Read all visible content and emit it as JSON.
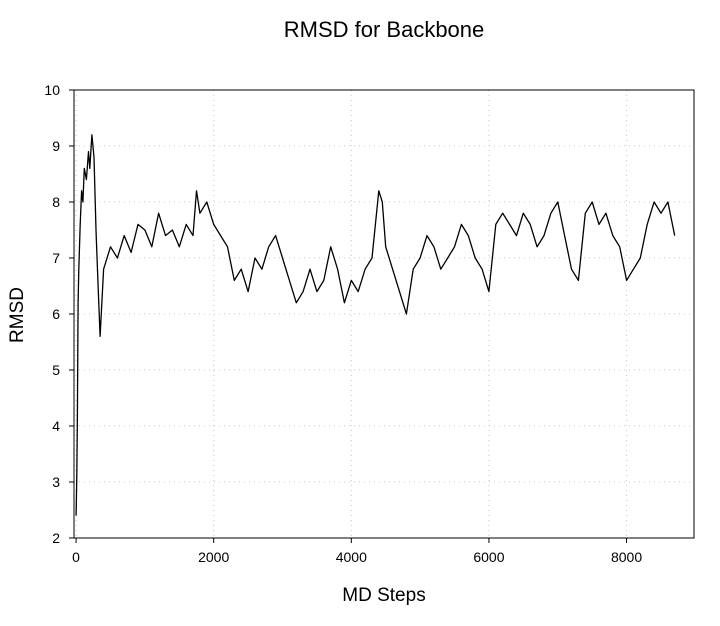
{
  "chart_data": {
    "type": "line",
    "title": "RMSD for Backbone",
    "xlabel": "MD Steps",
    "ylabel": "RMSD",
    "xlim": [
      -30,
      8980
    ],
    "ylim": [
      2,
      10
    ],
    "xticks": [
      0,
      2000,
      4000,
      6000,
      8000
    ],
    "xtick_labels": [
      "0",
      "2000",
      "4000",
      "6000",
      "8000"
    ],
    "yticks": [
      2,
      3,
      4,
      5,
      6,
      7,
      8,
      9,
      10
    ],
    "ytick_labels": [
      "2",
      "3",
      "4",
      "5",
      "6",
      "7",
      "8",
      "9",
      "10"
    ],
    "grid": true,
    "legend": "none",
    "series": [
      {
        "color": "#000000",
        "x": [
          0,
          10,
          20,
          30,
          40,
          60,
          80,
          100,
          120,
          150,
          180,
          200,
          230,
          260,
          290,
          320,
          350,
          400,
          500,
          600,
          700,
          800,
          900,
          1000,
          1100,
          1200,
          1300,
          1400,
          1500,
          1600,
          1700,
          1750,
          1800,
          1900,
          2000,
          2100,
          2200,
          2300,
          2400,
          2500,
          2600,
          2700,
          2800,
          2900,
          3000,
          3100,
          3200,
          3300,
          3400,
          3500,
          3600,
          3700,
          3800,
          3900,
          4000,
          4100,
          4200,
          4300,
          4400,
          4450,
          4500,
          4600,
          4700,
          4800,
          4900,
          5000,
          5100,
          5200,
          5300,
          5400,
          5500,
          5600,
          5700,
          5800,
          5900,
          6000,
          6100,
          6200,
          6300,
          6400,
          6500,
          6600,
          6700,
          6800,
          6900,
          7000,
          7100,
          7200,
          7300,
          7400,
          7500,
          7600,
          7700,
          7800,
          7900,
          8000,
          8100,
          8200,
          8300,
          8400,
          8500,
          8600,
          8700
        ],
        "y": [
          2.4,
          3.1,
          4.2,
          6.2,
          6.8,
          7.6,
          8.2,
          8.0,
          8.6,
          8.4,
          8.9,
          8.6,
          9.2,
          8.8,
          7.5,
          6.5,
          5.6,
          6.8,
          7.2,
          7.0,
          7.4,
          7.1,
          7.6,
          7.5,
          7.2,
          7.8,
          7.4,
          7.5,
          7.2,
          7.6,
          7.4,
          8.2,
          7.8,
          8.0,
          7.6,
          7.4,
          7.2,
          6.6,
          6.8,
          6.4,
          7.0,
          6.8,
          7.2,
          7.4,
          7.0,
          6.6,
          6.2,
          6.4,
          6.8,
          6.4,
          6.6,
          7.2,
          6.8,
          6.2,
          6.6,
          6.4,
          6.8,
          7.0,
          8.2,
          8.0,
          7.2,
          6.8,
          6.4,
          6.0,
          6.8,
          7.0,
          7.4,
          7.2,
          6.8,
          7.0,
          7.2,
          7.6,
          7.4,
          7.0,
          6.8,
          6.4,
          7.6,
          7.8,
          7.6,
          7.4,
          7.8,
          7.6,
          7.2,
          7.4,
          7.8,
          8.0,
          7.4,
          6.8,
          6.6,
          7.8,
          8.0,
          7.6,
          7.8,
          7.4,
          7.2,
          6.6,
          6.8,
          7.0,
          7.6,
          8.0,
          7.8,
          8.0,
          7.4
        ]
      }
    ]
  }
}
